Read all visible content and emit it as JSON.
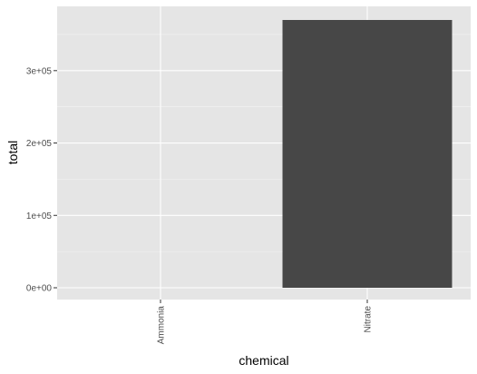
{
  "chart_data": {
    "type": "bar",
    "categories": [
      "Ammonia",
      "Nitrate"
    ],
    "values": [
      0,
      370000
    ],
    "title": "",
    "xlabel": "chemical",
    "ylabel": "total",
    "ylim": [
      0,
      370000
    ],
    "yticks": [
      {
        "value": 0,
        "label": "0e+00"
      },
      {
        "value": 100000,
        "label": "1e+05"
      },
      {
        "value": 200000,
        "label": "2e+05"
      },
      {
        "value": 300000,
        "label": "3e+05"
      }
    ],
    "grid": true,
    "colors": {
      "panel": "#e5e5e5",
      "grid_major": "#ffffff",
      "bar": "#474747",
      "tick_text": "#4d4d4d",
      "title_text": "#000000"
    }
  }
}
